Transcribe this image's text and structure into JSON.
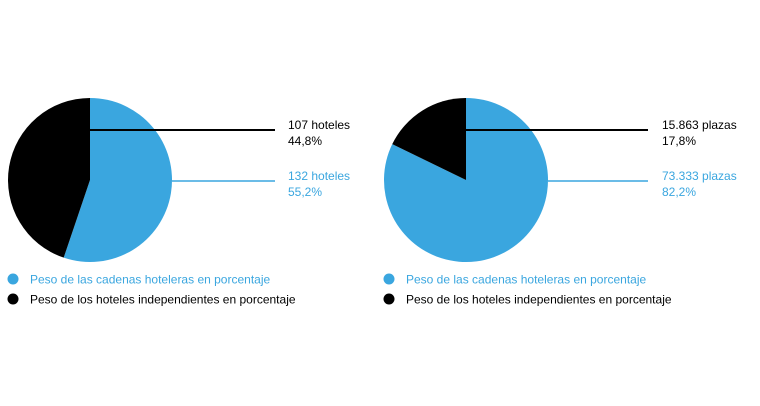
{
  "colors": {
    "chains": "#3aa6df",
    "independent": "#000000"
  },
  "chart_data": [
    {
      "type": "pie",
      "title": "",
      "slices": [
        {
          "label": "Peso de los hoteles independientes en porcentaje",
          "value": 44.8,
          "count_label": "107 hoteles",
          "pct_label": "44,8%",
          "color": "#000000"
        },
        {
          "label": "Peso de las cadenas hoteleras en porcentaje",
          "value": 55.2,
          "count_label": "132 hoteles",
          "pct_label": "55,2%",
          "color": "#3aa6df"
        }
      ],
      "legend": [
        {
          "label": "Peso de las cadenas hoteleras en porcentaje",
          "color": "#3aa6df"
        },
        {
          "label": "Peso de los hoteles independientes en porcentaje",
          "color": "#000000"
        }
      ]
    },
    {
      "type": "pie",
      "title": "",
      "slices": [
        {
          "label": "Peso de los hoteles independientes en porcentaje",
          "value": 17.8,
          "count_label": "15.863 plazas",
          "pct_label": "17,8%",
          "color": "#000000"
        },
        {
          "label": "Peso de las cadenas hoteleras en porcentaje",
          "value": 82.2,
          "count_label": "73.333 plazas",
          "pct_label": "82,2%",
          "color": "#3aa6df"
        }
      ],
      "legend": [
        {
          "label": "Peso de las cadenas hoteleras en porcentaje",
          "color": "#3aa6df"
        },
        {
          "label": "Peso de los hoteles independientes en porcentaje",
          "color": "#000000"
        }
      ]
    }
  ]
}
